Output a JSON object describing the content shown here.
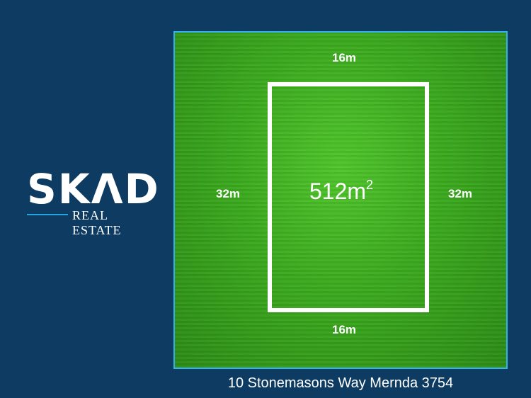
{
  "logo": {
    "name": "SKAD",
    "subtitle": "REAL ESTATE",
    "accent": "#29a3dc"
  },
  "plot": {
    "top": "16m",
    "bottom": "16m",
    "left": "32m",
    "right": "32m",
    "area": "512m",
    "area_unit_sup": "2"
  },
  "address": "10 Stonemasons Way Mernda 3754",
  "colors": {
    "background": "#0d3b62",
    "border": "#35b3e6",
    "grass": "#3aa81d"
  }
}
